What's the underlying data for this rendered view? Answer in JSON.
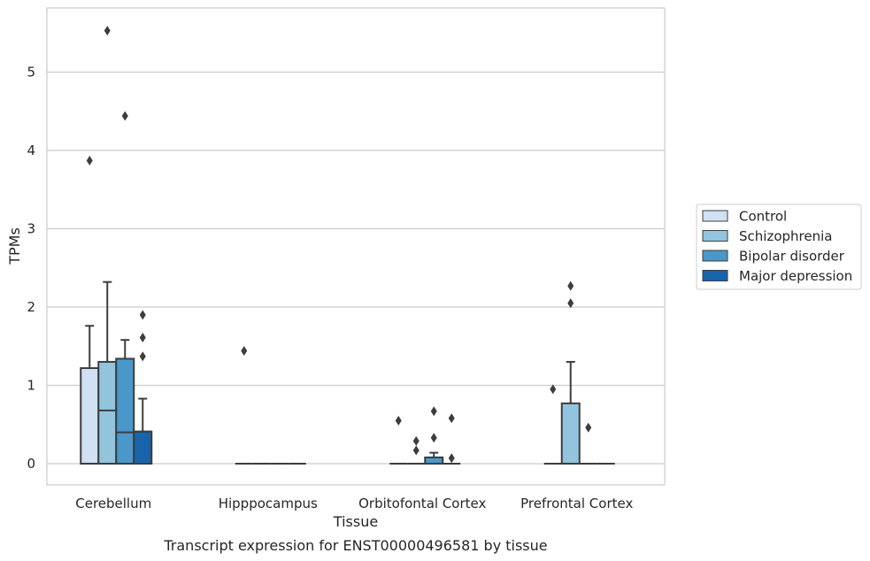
{
  "chart_data": {
    "type": "boxplot",
    "caption": "Transcript expression for ENST00000496581 by tissue",
    "xlabel": "Tissue",
    "ylabel": "TPMs",
    "ylim": [
      -0.27,
      5.85
    ],
    "yticks": [
      0,
      1,
      2,
      3,
      4,
      5
    ],
    "grid": "horizontal",
    "legend_position": "right",
    "categories": [
      "Cerebellum",
      "Hipppocampus",
      "Orbitofontal Cortex",
      "Prefrontal Cortex"
    ],
    "series": [
      {
        "name": "Control",
        "color": "#cfe1f2"
      },
      {
        "name": "Schizophrenia",
        "color": "#93c4de"
      },
      {
        "name": "Bipolar disorder",
        "color": "#4a98c9"
      },
      {
        "name": "Major depression",
        "color": "#1764ab"
      }
    ],
    "boxes": [
      [
        {
          "q1": 0,
          "median": 0,
          "q3": 1.22,
          "whislo": 0,
          "whishi": 1.76,
          "fliers": [
            3.87
          ]
        },
        {
          "q1": 0,
          "median": 0.68,
          "q3": 1.3,
          "whislo": 0,
          "whishi": 2.32,
          "fliers": [
            5.53
          ]
        },
        {
          "q1": 0,
          "median": 0.4,
          "q3": 1.34,
          "whislo": 0,
          "whishi": 1.58,
          "fliers": [
            4.44
          ]
        },
        {
          "q1": 0,
          "median": 0.41,
          "q3": 0.41,
          "whislo": 0,
          "whishi": 0.83,
          "fliers": [
            1.37,
            1.61,
            1.9
          ]
        }
      ],
      [
        {
          "q1": 0,
          "median": 0,
          "q3": 0,
          "whislo": 0,
          "whishi": 0,
          "fliers": [
            1.44
          ]
        },
        {
          "q1": 0,
          "median": 0,
          "q3": 0,
          "whislo": 0,
          "whishi": 0,
          "fliers": []
        },
        {
          "q1": 0,
          "median": 0,
          "q3": 0,
          "whislo": 0,
          "whishi": 0,
          "fliers": []
        },
        {
          "q1": 0,
          "median": 0,
          "q3": 0,
          "whislo": 0,
          "whishi": 0,
          "fliers": []
        }
      ],
      [
        {
          "q1": 0,
          "median": 0,
          "q3": 0,
          "whislo": 0,
          "whishi": 0,
          "fliers": [
            0.55
          ]
        },
        {
          "q1": 0,
          "median": 0,
          "q3": 0,
          "whislo": 0,
          "whishi": 0,
          "fliers": [
            0.17,
            0.29
          ]
        },
        {
          "q1": 0,
          "median": 0,
          "q3": 0.08,
          "whislo": 0,
          "whishi": 0.14,
          "fliers": [
            0.33,
            0.67
          ]
        },
        {
          "q1": 0,
          "median": 0,
          "q3": 0,
          "whislo": 0,
          "whishi": 0,
          "fliers": [
            0.07,
            0.58
          ]
        }
      ],
      [
        {
          "q1": 0,
          "median": 0,
          "q3": 0,
          "whislo": 0,
          "whishi": 0,
          "fliers": [
            0.95
          ]
        },
        {
          "q1": 0,
          "median": 0,
          "q3": 0.77,
          "whislo": 0,
          "whishi": 1.3,
          "fliers": [
            2.05,
            2.27
          ]
        },
        {
          "q1": 0,
          "median": 0,
          "q3": 0,
          "whislo": 0,
          "whishi": 0,
          "fliers": [
            0.46
          ]
        },
        {
          "q1": 0,
          "median": 0,
          "q3": 0,
          "whislo": 0,
          "whishi": 0,
          "fliers": []
        }
      ]
    ]
  }
}
